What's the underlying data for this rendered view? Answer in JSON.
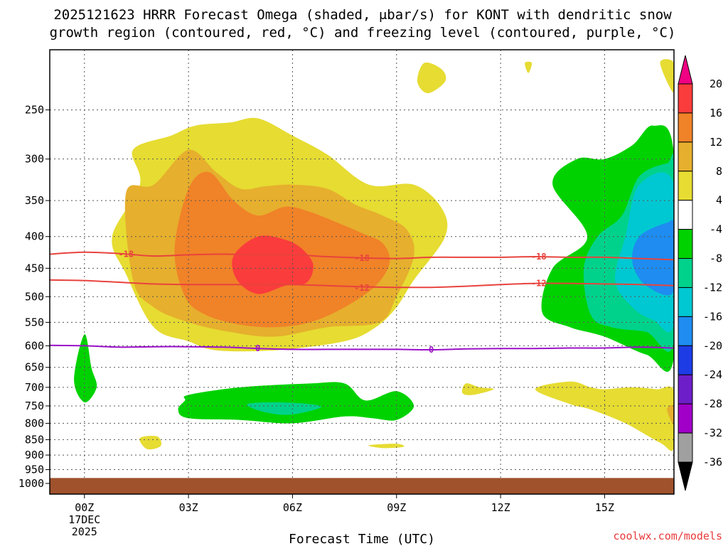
{
  "chart_data": {
    "type": "heatmap",
    "title": "2025121623 HRRR Forecast Omega (shaded, μbar/s) for KONT with dendritic snow",
    "subtitle": "growth region (contoured, red, °C) and freezing level (contoured, purple, °C)",
    "xlabel": "Forecast Time (UTC)",
    "ylabel": "",
    "credit": "coolwx.com/models",
    "xlim": [
      -1,
      17
    ],
    "ylim": [
      1000,
      200
    ],
    "x_ticks": [
      {
        "hour": 0,
        "label": "00Z",
        "sub1": "17DEC",
        "sub2": "2025"
      },
      {
        "hour": 3,
        "label": "03Z"
      },
      {
        "hour": 6,
        "label": "06Z"
      },
      {
        "hour": 9,
        "label": "09Z"
      },
      {
        "hour": 12,
        "label": "12Z"
      },
      {
        "hour": 15,
        "label": "15Z"
      }
    ],
    "y_ticks": [
      250,
      300,
      350,
      400,
      450,
      500,
      550,
      600,
      650,
      700,
      750,
      800,
      850,
      900,
      950,
      1000
    ],
    "ground_level_hpa": 980,
    "ground_color": "#a0522d",
    "colorbar": {
      "levels": [
        -36,
        -32,
        -28,
        -24,
        -20,
        -16,
        -12,
        -8,
        -4,
        4,
        8,
        12,
        16,
        20
      ],
      "label_levels": [
        20,
        16,
        12,
        8,
        4,
        -4,
        -8,
        -12,
        -16,
        -20,
        -24,
        -28,
        -32,
        -36
      ],
      "colors": [
        {
          "range": "< -36",
          "color": "#000000"
        },
        {
          "range": "-36..-32",
          "color": "#a0a0a0"
        },
        {
          "range": "-32..-28",
          "color": "#a000c8"
        },
        {
          "range": "-28..-24",
          "color": "#6e1ec8"
        },
        {
          "range": "-24..-20",
          "color": "#1e3ce6"
        },
        {
          "range": "-20..-16",
          "color": "#1e8cf0"
        },
        {
          "range": "-16..-12",
          "color": "#00c8d2"
        },
        {
          "range": "-12..-8",
          "color": "#00d28c"
        },
        {
          "range": "-8..-4",
          "color": "#00d200"
        },
        {
          "range": "-4..4",
          "color": "#ffffff"
        },
        {
          "range": "4..8",
          "color": "#e6dc32"
        },
        {
          "range": "8..12",
          "color": "#e6af2d"
        },
        {
          "range": "12..16",
          "color": "#f08228"
        },
        {
          "range": "16..20",
          "color": "#fa3c3c"
        },
        {
          "range": "> 20",
          "color": "#f00082"
        }
      ]
    },
    "shaded_regions": [
      {
        "value_range": "4..8",
        "color": "#e6dc32",
        "points": [
          [
            1.6,
            330
          ],
          [
            1.4,
            290
          ],
          [
            2.5,
            275
          ],
          [
            3.2,
            265
          ],
          [
            4.2,
            262
          ],
          [
            5.0,
            258
          ],
          [
            6.0,
            275
          ],
          [
            7.0,
            295
          ],
          [
            8.2,
            330
          ],
          [
            9.5,
            330
          ],
          [
            10.3,
            360
          ],
          [
            10.4,
            400
          ],
          [
            9.5,
            470
          ],
          [
            9.0,
            520
          ],
          [
            8.4,
            560
          ],
          [
            7.5,
            590
          ],
          [
            5.5,
            610
          ],
          [
            3.8,
            610
          ],
          [
            3.0,
            590
          ],
          [
            2.0,
            560
          ],
          [
            1.2,
            460
          ],
          [
            0.8,
            400
          ]
        ]
      },
      {
        "value_range": "8..12",
        "color": "#e6af2d",
        "points": [
          [
            1.2,
            340
          ],
          [
            2.0,
            330
          ],
          [
            3.0,
            290
          ],
          [
            3.8,
            315
          ],
          [
            4.5,
            335
          ],
          [
            5.2,
            332
          ],
          [
            6.0,
            330
          ],
          [
            7.0,
            335
          ],
          [
            7.8,
            355
          ],
          [
            8.6,
            370
          ],
          [
            9.3,
            390
          ],
          [
            9.5,
            430
          ],
          [
            9.0,
            500
          ],
          [
            8.5,
            550
          ],
          [
            7.0,
            560
          ],
          [
            5.5,
            580
          ],
          [
            4.2,
            570
          ],
          [
            3.0,
            550
          ],
          [
            2.0,
            520
          ],
          [
            1.4,
            470
          ]
        ]
      },
      {
        "value_range": "12..16",
        "color": "#f08228",
        "points": [
          [
            3.0,
            335
          ],
          [
            3.6,
            315
          ],
          [
            4.3,
            350
          ],
          [
            5.0,
            370
          ],
          [
            5.8,
            358
          ],
          [
            6.5,
            365
          ],
          [
            7.3,
            380
          ],
          [
            8.0,
            395
          ],
          [
            8.6,
            410
          ],
          [
            8.8,
            440
          ],
          [
            8.4,
            480
          ],
          [
            7.5,
            520
          ],
          [
            6.5,
            550
          ],
          [
            5.5,
            560
          ],
          [
            4.5,
            555
          ],
          [
            3.5,
            535
          ],
          [
            2.9,
            500
          ],
          [
            2.6,
            420
          ]
        ]
      },
      {
        "value_range": "16..20",
        "color": "#fa3c3c",
        "points": [
          [
            5.0,
            400
          ],
          [
            5.8,
            405
          ],
          [
            6.3,
            420
          ],
          [
            6.6,
            445
          ],
          [
            6.4,
            475
          ],
          [
            5.8,
            480
          ],
          [
            5.0,
            495
          ],
          [
            4.4,
            470
          ],
          [
            4.3,
            430
          ]
        ]
      },
      {
        "value_range": "4..8",
        "color": "#e6dc32",
        "points": [
          [
            9.8,
            210
          ],
          [
            10.3,
            215
          ],
          [
            10.4,
            225
          ],
          [
            9.9,
            235
          ],
          [
            9.6,
            225
          ]
        ]
      },
      {
        "value_range": "4..8",
        "color": "#e6dc32",
        "points": [
          [
            12.7,
            210
          ],
          [
            12.9,
            210
          ],
          [
            12.8,
            218
          ]
        ]
      },
      {
        "value_range": "4..8",
        "color": "#e6dc32",
        "points": [
          [
            16.6,
            210
          ],
          [
            17,
            210
          ],
          [
            17,
            235
          ]
        ]
      },
      {
        "value_range": "-8..-4",
        "color": "#00d200",
        "points": [
          [
            13.5,
            330
          ],
          [
            14.2,
            300
          ],
          [
            15.0,
            300
          ],
          [
            15.8,
            285
          ],
          [
            16.4,
            265
          ],
          [
            17,
            295
          ],
          [
            17,
            625
          ],
          [
            16.2,
            620
          ],
          [
            15.0,
            580
          ],
          [
            14.0,
            560
          ],
          [
            13.2,
            530
          ],
          [
            13.5,
            450
          ],
          [
            14.5,
            400
          ]
        ]
      },
      {
        "value_range": "-12..-8",
        "color": "#00d28c",
        "points": [
          [
            15.5,
            370
          ],
          [
            16.0,
            320
          ],
          [
            16.8,
            305
          ],
          [
            17,
            310
          ],
          [
            17,
            590
          ],
          [
            16.2,
            570
          ],
          [
            15.2,
            560
          ],
          [
            14.6,
            535
          ],
          [
            14.4,
            450
          ],
          [
            14.8,
            400
          ]
        ]
      },
      {
        "value_range": "-16..-12",
        "color": "#00c8d2",
        "points": [
          [
            16.0,
            330
          ],
          [
            17,
            330
          ],
          [
            17,
            550
          ],
          [
            16.4,
            545
          ],
          [
            15.8,
            520
          ],
          [
            15.3,
            470
          ],
          [
            15.6,
            400
          ]
        ]
      },
      {
        "value_range": "-20..-16",
        "color": "#1e8cf0",
        "points": [
          [
            16.8,
            380
          ],
          [
            17,
            385
          ],
          [
            17,
            490
          ],
          [
            16.2,
            480
          ],
          [
            15.8,
            440
          ],
          [
            16.0,
            400
          ]
        ]
      },
      {
        "value_range": "-8..-4",
        "color": "#00d200",
        "points": [
          [
            0.0,
            575
          ],
          [
            0.2,
            650
          ],
          [
            0.35,
            700
          ],
          [
            0.0,
            740
          ],
          [
            -0.3,
            680
          ]
        ]
      },
      {
        "value_range": "-8..-4",
        "color": "#00d200",
        "points": [
          [
            3.0,
            720
          ],
          [
            4.5,
            700
          ],
          [
            6.5,
            690
          ],
          [
            7.5,
            690
          ],
          [
            8.1,
            735
          ],
          [
            9.0,
            710
          ],
          [
            9.5,
            750
          ],
          [
            9.0,
            790
          ],
          [
            8.3,
            785
          ],
          [
            7.5,
            780
          ],
          [
            6.0,
            800
          ],
          [
            4.5,
            790
          ],
          [
            3.0,
            785
          ],
          [
            2.7,
            760
          ],
          [
            2.9,
            735
          ]
        ]
      },
      {
        "value_range": "-12..-8",
        "color": "#00d28c",
        "points": [
          [
            4.7,
            745
          ],
          [
            5.5,
            740
          ],
          [
            6.5,
            745
          ],
          [
            6.8,
            755
          ],
          [
            5.9,
            775
          ],
          [
            5.1,
            765
          ]
        ]
      },
      {
        "value_range": "4..8",
        "color": "#e6dc32",
        "points": [
          [
            11.0,
            690
          ],
          [
            11.4,
            700
          ],
          [
            11.8,
            705
          ],
          [
            11.2,
            720
          ],
          [
            10.9,
            715
          ]
        ]
      },
      {
        "value_range": "4..8",
        "color": "#e6dc32",
        "points": [
          [
            13.0,
            705
          ],
          [
            14.0,
            685
          ],
          [
            14.6,
            700
          ],
          [
            15.0,
            705
          ],
          [
            15.8,
            700
          ],
          [
            16.5,
            705
          ],
          [
            17,
            710
          ],
          [
            17,
            875
          ],
          [
            16.6,
            860
          ],
          [
            15.6,
            800
          ],
          [
            14.6,
            760
          ],
          [
            14.0,
            745
          ]
        ]
      },
      {
        "value_range": "8..12",
        "color": "#e6af2d",
        "points": [
          [
            16.8,
            760
          ],
          [
            17,
            750
          ],
          [
            17,
            805
          ]
        ]
      },
      {
        "value_range": "4..8",
        "color": "#e6dc32",
        "points": [
          [
            1.6,
            845
          ],
          [
            2.1,
            840
          ],
          [
            2.2,
            870
          ],
          [
            1.8,
            880
          ]
        ]
      },
      {
        "value_range": "4..8",
        "color": "#e6dc32",
        "points": [
          [
            8.2,
            868
          ],
          [
            9.0,
            863
          ],
          [
            9.2,
            873
          ],
          [
            8.6,
            877
          ]
        ]
      }
    ],
    "contours": [
      {
        "name": "dendritic -18C",
        "value": "-18",
        "color": "#e8433d",
        "points": [
          [
            -1,
            427
          ],
          [
            0,
            424
          ],
          [
            1,
            426
          ],
          [
            2,
            430
          ],
          [
            3,
            428
          ],
          [
            4,
            427
          ],
          [
            5,
            428
          ],
          [
            6,
            428
          ],
          [
            7,
            431
          ],
          [
            8,
            433
          ],
          [
            9,
            434
          ],
          [
            10,
            432
          ],
          [
            11,
            432
          ],
          [
            12,
            432
          ],
          [
            13,
            431
          ],
          [
            14,
            432
          ],
          [
            15,
            432
          ],
          [
            16,
            434
          ],
          [
            17,
            436
          ]
        ],
        "labels": [
          {
            "hour": 1.2,
            "hpa": 427,
            "text": "-18"
          },
          {
            "hour": 8.0,
            "hpa": 433,
            "text": "-18"
          },
          {
            "hour": 13.1,
            "hpa": 431,
            "text": "-18"
          }
        ]
      },
      {
        "name": "dendritic -12C",
        "value": "-12",
        "color": "#e8433d",
        "points": [
          [
            -1,
            470
          ],
          [
            0,
            471
          ],
          [
            1,
            474
          ],
          [
            2,
            477
          ],
          [
            3,
            478
          ],
          [
            4,
            478
          ],
          [
            5,
            478
          ],
          [
            6,
            478
          ],
          [
            7,
            480
          ],
          [
            8,
            482
          ],
          [
            9,
            483
          ],
          [
            10,
            483
          ],
          [
            11,
            481
          ],
          [
            12,
            478
          ],
          [
            13,
            476
          ],
          [
            14,
            476
          ],
          [
            15,
            477
          ],
          [
            16,
            478
          ],
          [
            17,
            480
          ]
        ],
        "labels": [
          {
            "hour": 8.0,
            "hpa": 484,
            "text": "-12"
          },
          {
            "hour": 13.1,
            "hpa": 476,
            "text": "-12"
          }
        ]
      },
      {
        "name": "freezing level 0C",
        "value": "0",
        "color": "#9b10c8",
        "points": [
          [
            -1,
            599
          ],
          [
            0,
            600
          ],
          [
            1,
            603
          ],
          [
            2,
            602
          ],
          [
            3,
            602
          ],
          [
            4,
            603
          ],
          [
            5,
            606
          ],
          [
            6,
            608
          ],
          [
            7,
            608
          ],
          [
            8,
            608
          ],
          [
            9,
            608
          ],
          [
            10,
            609
          ],
          [
            11,
            607
          ],
          [
            12,
            606
          ],
          [
            13,
            606
          ],
          [
            14,
            605
          ],
          [
            15,
            605
          ],
          [
            16,
            603
          ],
          [
            17,
            605
          ]
        ],
        "labels": [
          {
            "hour": 5.0,
            "hpa": 606,
            "text": "0"
          },
          {
            "hour": 10.0,
            "hpa": 609,
            "text": "0"
          }
        ]
      }
    ]
  }
}
